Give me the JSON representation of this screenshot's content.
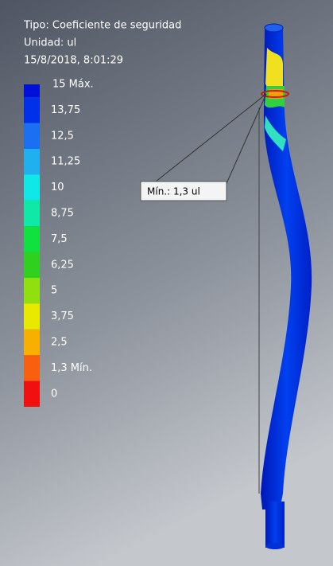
{
  "header": {
    "type_line": "Tipo: Coeficiente de seguridad",
    "unit_line": "Unidad: ul",
    "date_line": "15/8/2018, 8:01:29"
  },
  "legend": {
    "entries": [
      {
        "label": "15 Máx.",
        "color": "#0010d8"
      },
      {
        "label": "13,75",
        "color": "#0030e8"
      },
      {
        "label": "12,5",
        "color": "#1a70f0"
      },
      {
        "label": "11,25",
        "color": "#20b0f0"
      },
      {
        "label": "10",
        "color": "#10e8e8"
      },
      {
        "label": "8,75",
        "color": "#10e8a8"
      },
      {
        "label": "7,5",
        "color": "#10e040"
      },
      {
        "label": "6,25",
        "color": "#30d020"
      },
      {
        "label": "5",
        "color": "#90e010"
      },
      {
        "label": "3,75",
        "color": "#e8e800"
      },
      {
        "label": "2,5",
        "color": "#f8b000"
      },
      {
        "label": "1,3 Mín.",
        "color": "#f86010"
      },
      {
        "label": "0",
        "color": "#f01010"
      }
    ]
  },
  "callout": {
    "label": "Mín.: 1,3 ul"
  }
}
